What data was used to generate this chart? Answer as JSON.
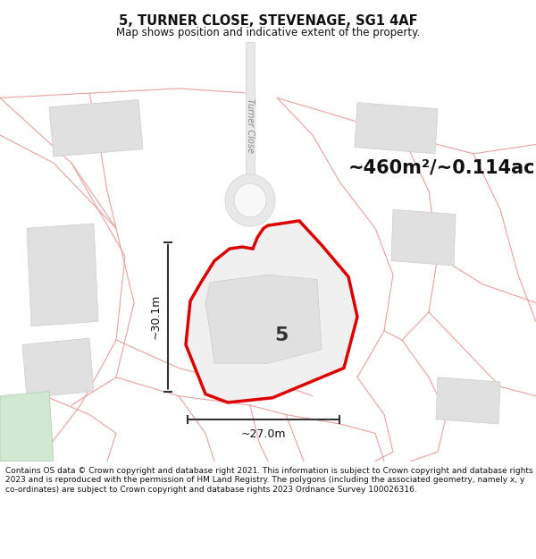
{
  "title": "5, TURNER CLOSE, STEVENAGE, SG1 4AF",
  "subtitle": "Map shows position and indicative extent of the property.",
  "area_text": "~460m²/~0.114ac.",
  "label_5": "5",
  "dim_width": "~27.0m",
  "dim_height": "~30.1m",
  "road_label": "Turner Close",
  "footer": "Contains OS data © Crown copyright and database right 2021. This information is subject to Crown copyright and database rights 2023 and is reproduced with the permission of HM Land Registry. The polygons (including the associated geometry, namely x, y co-ordinates) are subject to Crown copyright and database rights 2023 Ordnance Survey 100026316.",
  "bg_color": "#ffffff",
  "map_bg": "#ffffff",
  "pink_line_color": "#e8a0a0",
  "building_fill": "#e0e0e0",
  "building_edge": "#cccccc",
  "road_fill": "#e8e8e8",
  "road_edge": "#d0d0d0",
  "plot_fill": "#f0f0f0",
  "plot_edge": "#dd0000",
  "inner_bld_fill": "#e0e0e0",
  "inner_bld_edge": "#cccccc",
  "green_fill": "#d0e8d0",
  "green_edge": "#b0c8b0",
  "dim_line_color": "#333333",
  "title_fontsize": 10.5,
  "subtitle_fontsize": 8.5,
  "area_fontsize": 15,
  "label_fontsize": 16,
  "dim_fontsize": 9,
  "footer_fontsize": 6.5,
  "road_label_fontsize": 7
}
